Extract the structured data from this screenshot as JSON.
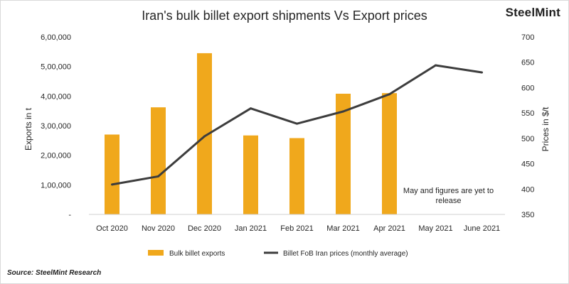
{
  "header": {
    "title": "Iran's bulk billet export shipments Vs Export prices",
    "brand": "SteelMint"
  },
  "footer": {
    "source": "Source: SteelMint Research"
  },
  "chart_data": {
    "type": "bar",
    "title": "Iran's bulk billet export shipments Vs Export prices",
    "categories": [
      "Oct 2020",
      "Nov 2020",
      "Dec 2020",
      "Jan 2021",
      "Feb 2021",
      "Mar 2021",
      "Apr 2021",
      "May 2021",
      "June 2021"
    ],
    "ylabel": "Exports in t",
    "y2label": "Prices in $/t",
    "ylim": [
      0,
      600000
    ],
    "y2lim": [
      350,
      700
    ],
    "y_ticks": [
      {
        "value": 0,
        "label": "-"
      },
      {
        "value": 100000,
        "label": "1,00,000"
      },
      {
        "value": 200000,
        "label": "2,00,000"
      },
      {
        "value": 300000,
        "label": "3,00,000"
      },
      {
        "value": 400000,
        "label": "4,00,000"
      },
      {
        "value": 500000,
        "label": "5,00,000"
      },
      {
        "value": 600000,
        "label": "6,00,000"
      }
    ],
    "y2_ticks": [
      {
        "value": 350,
        "label": "350"
      },
      {
        "value": 400,
        "label": "400"
      },
      {
        "value": 450,
        "label": "450"
      },
      {
        "value": 500,
        "label": "500"
      },
      {
        "value": 550,
        "label": "550"
      },
      {
        "value": 600,
        "label": "600"
      },
      {
        "value": 650,
        "label": "650"
      },
      {
        "value": 700,
        "label": "700"
      }
    ],
    "series": [
      {
        "name": "Bulk billet exports",
        "type": "bar",
        "axis": "left",
        "color": "#f0a81c",
        "values": [
          270000,
          362000,
          545000,
          267000,
          258000,
          408000,
          410000,
          null,
          null
        ]
      },
      {
        "name": "Billet FoB Iran prices (monthly average)",
        "type": "line",
        "axis": "right",
        "color": "#3d3d3d",
        "values": [
          409,
          425,
          504,
          559,
          529,
          553,
          587,
          644,
          630
        ]
      }
    ],
    "annotation": {
      "lines": [
        "May and figures are yet to",
        "release"
      ],
      "category": "May 2021"
    },
    "grid": false,
    "legend_position": "bottom"
  }
}
